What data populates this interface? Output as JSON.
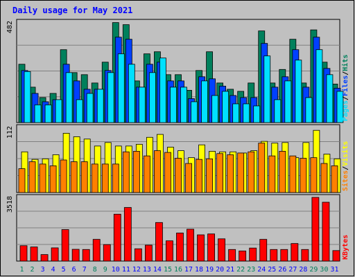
{
  "title": "Daily usage for May 2021",
  "colors": {
    "background": "#c0c0c0",
    "hits": "#00805c",
    "files": "#0040ff",
    "pages": "#00e0ff",
    "visits": "#ffff00",
    "sites": "#ff8000",
    "kbytes": "#ff0000",
    "title": "#0000ff",
    "weekend_label": "#00805c",
    "weekday_label": "#0000ff"
  },
  "chart_data": [
    {
      "type": "bar",
      "name": "hits-files-pages",
      "ymax_label": "482",
      "ylim": [
        0,
        482
      ],
      "legend": [
        "Pages",
        "/",
        "Files",
        "/",
        "Hits"
      ],
      "categories": [
        "1",
        "2",
        "3",
        "4",
        "5",
        "6",
        "7",
        "8",
        "9",
        "10",
        "11",
        "12",
        "13",
        "14",
        "15",
        "16",
        "17",
        "18",
        "19",
        "20",
        "21",
        "22",
        "23",
        "24",
        "25",
        "26",
        "27",
        "28",
        "29",
        "30",
        "31"
      ],
      "series": [
        {
          "name": "Hits",
          "values": [
            280,
            170,
            120,
            140,
            350,
            240,
            230,
            190,
            290,
            480,
            470,
            200,
            330,
            340,
            230,
            230,
            155,
            250,
            340,
            190,
            160,
            150,
            190,
            440,
            190,
            255,
            400,
            190,
            445,
            290,
            185
          ]
        },
        {
          "name": "Files",
          "values": [
            250,
            140,
            100,
            110,
            280,
            200,
            160,
            160,
            250,
            410,
            400,
            170,
            280,
            290,
            200,
            200,
            115,
            220,
            210,
            175,
            130,
            120,
            120,
            380,
            170,
            220,
            350,
            170,
            410,
            260,
            165
          ]
        },
        {
          "name": "Pages",
          "values": [
            245,
            85,
            85,
            110,
            240,
            110,
            140,
            160,
            240,
            330,
            280,
            170,
            240,
            310,
            170,
            170,
            100,
            200,
            130,
            150,
            90,
            90,
            80,
            320,
            110,
            200,
            300,
            120,
            350,
            230,
            150
          ]
        }
      ]
    },
    {
      "type": "bar",
      "name": "visits-sites",
      "ymax_label": "112",
      "ylim": [
        0,
        112
      ],
      "legend": [
        "Sites",
        "/",
        "Visits"
      ],
      "categories": [
        "1",
        "2",
        "3",
        "4",
        "5",
        "6",
        "7",
        "8",
        "9",
        "10",
        "11",
        "12",
        "13",
        "14",
        "15",
        "16",
        "17",
        "18",
        "19",
        "20",
        "21",
        "22",
        "23",
        "24",
        "25",
        "26",
        "27",
        "28",
        "29",
        "30",
        "31"
      ],
      "series": [
        {
          "name": "Visits",
          "values": [
            70,
            57,
            58,
            65,
            102,
            96,
            92,
            80,
            86,
            80,
            80,
            83,
            95,
            100,
            78,
            72,
            60,
            82,
            71,
            70,
            70,
            68,
            72,
            88,
            85,
            86,
            60,
            86,
            107,
            66,
            58
          ]
        },
        {
          "name": "Sites",
          "values": [
            41,
            53,
            49,
            46,
            56,
            53,
            53,
            49,
            49,
            49,
            70,
            71,
            63,
            72,
            69,
            59,
            50,
            57,
            58,
            67,
            65,
            68,
            70,
            85,
            63,
            71,
            63,
            59,
            60,
            50,
            46
          ]
        }
      ]
    },
    {
      "type": "bar",
      "name": "kbytes",
      "ymax_label": "3518",
      "ylim": [
        0,
        3518
      ],
      "legend": [
        "KBytes"
      ],
      "categories": [
        "1",
        "2",
        "3",
        "4",
        "5",
        "6",
        "7",
        "8",
        "9",
        "10",
        "11",
        "12",
        "13",
        "14",
        "15",
        "16",
        "17",
        "18",
        "19",
        "20",
        "21",
        "22",
        "23",
        "24",
        "25",
        "26",
        "27",
        "28",
        "29",
        "30",
        "31"
      ],
      "series": [
        {
          "name": "KBytes",
          "values": [
            850,
            780,
            360,
            730,
            1740,
            650,
            640,
            1200,
            910,
            2590,
            2960,
            680,
            880,
            2130,
            1120,
            1550,
            1760,
            1450,
            1500,
            1230,
            640,
            560,
            720,
            1200,
            640,
            640,
            970,
            640,
            3518,
            3250,
            580
          ]
        }
      ]
    }
  ],
  "weekends": [
    "1",
    "2",
    "8",
    "9",
    "15",
    "16",
    "22",
    "23",
    "29",
    "30"
  ]
}
